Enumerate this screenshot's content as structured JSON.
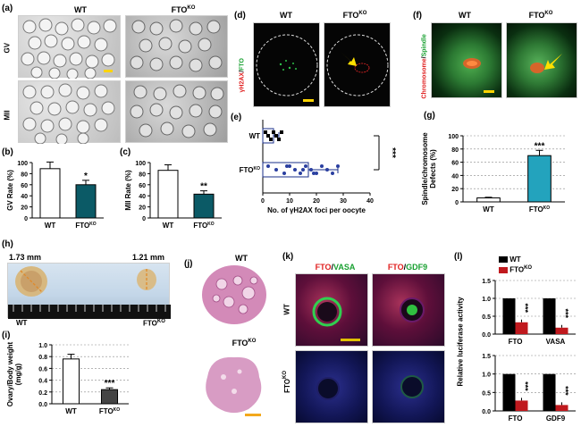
{
  "panels": {
    "a": {
      "label": "(a)",
      "wt": "WT",
      "ko": "FTO",
      "ko_sup": "KO",
      "row1": "GV",
      "row2": "MII"
    },
    "b": {
      "label": "(b)"
    },
    "c": {
      "label": "(c)"
    },
    "d": {
      "label": "(d)",
      "wt": "WT",
      "ko": "FTO",
      "ko_sup": "KO",
      "side_a": "γH2AX",
      "side_sep": "/",
      "side_b": "FTO"
    },
    "e": {
      "label": "(e)"
    },
    "f": {
      "label": "(f)",
      "wt": "WT",
      "ko": "FTO",
      "ko_sup": "KO",
      "side_a": "Chromosome",
      "side_sep": "/",
      "side_b": "Spindle"
    },
    "g": {
      "label": "(g)"
    },
    "h": {
      "label": "(h)",
      "left_size": "1.73 mm",
      "right_size": "1.21 mm",
      "wt": "WT",
      "ko": "FTO",
      "ko_sup": "KO"
    },
    "i": {
      "label": "(i)"
    },
    "j": {
      "label": "(j)",
      "wt": "WT",
      "ko": "FTO",
      "ko_sup": "KO"
    },
    "k": {
      "label": "(k)",
      "c1a": "FTO",
      "c1sep": "/",
      "c1b": "VASA",
      "c2a": "FTO",
      "c2sep": "/",
      "c2b": "GDF9",
      "row1": "WT",
      "row2": "FTO",
      "row2_sup": "KO"
    },
    "l": {
      "label": "(l)",
      "legend_wt": "WT",
      "legend_ko": "FTO",
      "legend_ko_sup": "KO",
      "ylabel": "Relative luciferase activity"
    }
  },
  "colors": {
    "teal": "#0b5a66",
    "cyan": "#23a3bd",
    "darkblue": "#0d1f7a",
    "red": "#c0191e"
  },
  "chart_data": [
    {
      "id": "b",
      "type": "bar",
      "categories": [
        "WT",
        "FTO"
      ],
      "category_sups": [
        "",
        "KO"
      ],
      "values": [
        89,
        60
      ],
      "errors": [
        12,
        8
      ],
      "colors": [
        "#ffffff",
        "#0b5a66"
      ],
      "ylabel": "GV Rate (%)",
      "ylim": [
        0,
        100
      ],
      "yticks": [
        "0",
        "20",
        "40",
        "60",
        "80",
        "100"
      ],
      "annotations": [
        "",
        "*"
      ]
    },
    {
      "id": "c",
      "type": "bar",
      "categories": [
        "WT",
        "FTO"
      ],
      "category_sups": [
        "",
        "KO"
      ],
      "values": [
        86,
        43
      ],
      "errors": [
        10,
        6
      ],
      "colors": [
        "#ffffff",
        "#0b5a66"
      ],
      "ylabel": "MII Rate (%)",
      "ylim": [
        0,
        100
      ],
      "yticks": [
        "0",
        "20",
        "40",
        "60",
        "80",
        "100"
      ],
      "annotations": [
        "",
        "**"
      ]
    },
    {
      "id": "e",
      "type": "bar",
      "orientation": "horizontal",
      "categories": [
        "WT",
        "FTO"
      ],
      "category_sups": [
        "",
        "KO"
      ],
      "values": [
        4,
        17
      ],
      "errors": [
        2,
        11
      ],
      "points": [
        [
          1,
          2,
          3,
          4,
          5,
          6,
          7,
          2,
          3,
          4
        ],
        [
          2,
          5,
          8,
          10,
          12,
          14,
          16,
          18,
          20,
          22,
          24,
          26,
          28,
          15,
          19,
          9
        ]
      ],
      "colors": [
        "#ffffff",
        "#ffffff"
      ],
      "xlabel": "No. of γH2AX foci per oocyte",
      "xlim": [
        0,
        40
      ],
      "xticks": [
        "0",
        "10",
        "20",
        "30",
        "40"
      ],
      "annotation": "***"
    },
    {
      "id": "g",
      "type": "bar",
      "categories": [
        "WT",
        "FTO"
      ],
      "category_sups": [
        "",
        "KO"
      ],
      "values": [
        6,
        70
      ],
      "errors": [
        1,
        8
      ],
      "colors": [
        "#ffffff",
        "#23a3bd"
      ],
      "ylabel_line1": "Spindle/chromosome",
      "ylabel_line2": "Defects (%)",
      "ylim": [
        0,
        100
      ],
      "yticks": [
        "0",
        "20",
        "40",
        "60",
        "80",
        "100"
      ],
      "annotations": [
        "",
        "***"
      ]
    },
    {
      "id": "i",
      "type": "bar",
      "categories": [
        "WT",
        "FTO"
      ],
      "category_sups": [
        "",
        "KO"
      ],
      "values": [
        0.76,
        0.24
      ],
      "errors": [
        0.08,
        0.03
      ],
      "colors": [
        "#ffffff",
        "#444444"
      ],
      "ylabel_line1": "Ovary/Body weight",
      "ylabel_line2": "(mg/g)",
      "ylim": [
        0,
        1.0
      ],
      "yticks": [
        "0.0",
        "0.2",
        "0.4",
        "0.6",
        "0.8",
        "1.0"
      ],
      "annotations": [
        "",
        "***"
      ]
    },
    {
      "id": "l1",
      "type": "bar",
      "categories": [
        "FTO",
        "VASA"
      ],
      "series": [
        {
          "name": "WT",
          "values": [
            1.0,
            1.0
          ]
        },
        {
          "name": "FTO KO",
          "values": [
            0.33,
            0.18
          ]
        }
      ],
      "colors": [
        "#000000",
        "#c0191e"
      ],
      "ylim": [
        0,
        1.5
      ],
      "yticks": [
        "0.0",
        "0.5",
        "1.0",
        "1.5"
      ],
      "annotations": [
        "***",
        "***"
      ]
    },
    {
      "id": "l2",
      "type": "bar",
      "categories": [
        "FTO",
        "GDF9"
      ],
      "series": [
        {
          "name": "WT",
          "values": [
            1.0,
            1.0
          ]
        },
        {
          "name": "FTO KO",
          "values": [
            0.28,
            0.16
          ]
        }
      ],
      "colors": [
        "#000000",
        "#c0191e"
      ],
      "ylim": [
        0,
        1.5
      ],
      "yticks": [
        "0.0",
        "0.5",
        "1.0",
        "1.5"
      ],
      "annotations": [
        "***",
        "***"
      ]
    }
  ]
}
